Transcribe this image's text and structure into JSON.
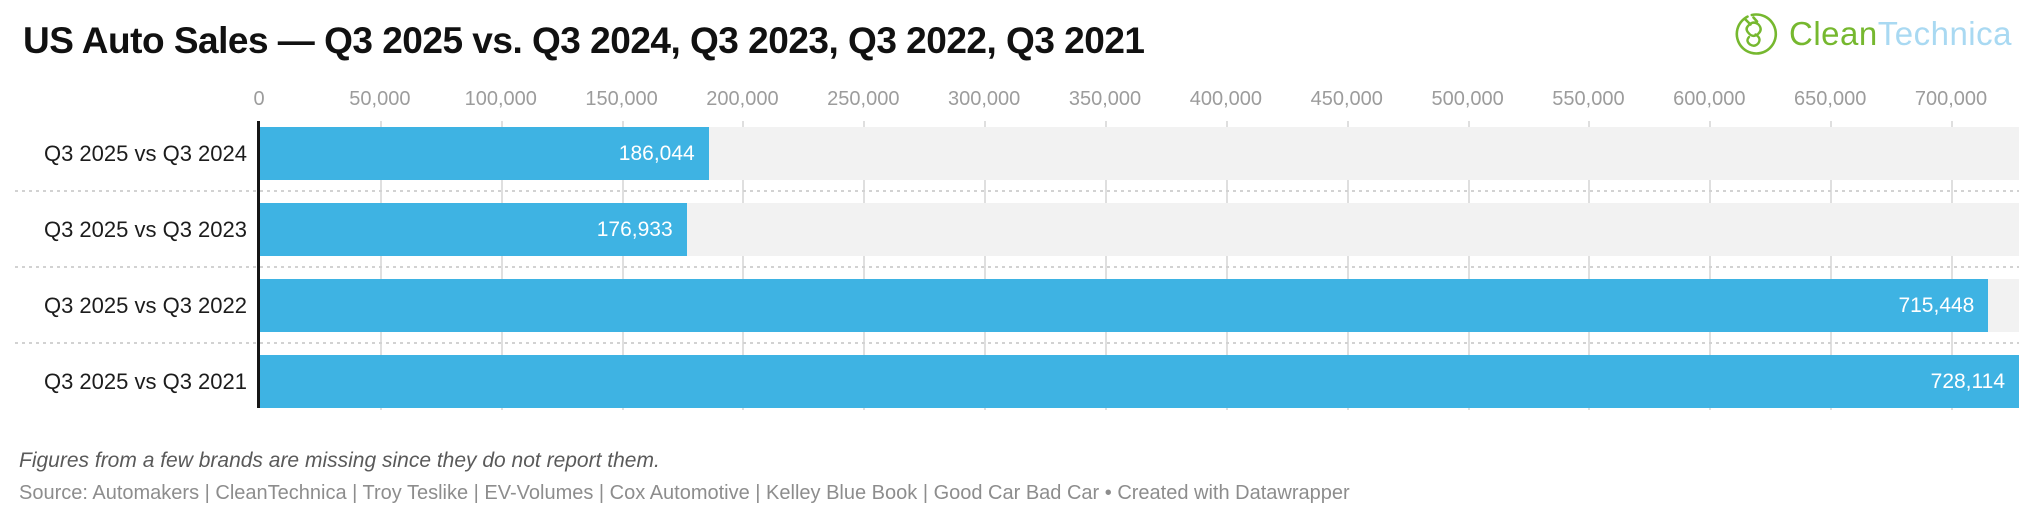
{
  "header": {
    "title": "US Auto Sales — Q3 2025 vs. Q3 2024, Q3 2023, Q3 2022, Q3 2021",
    "logo": {
      "text_primary": "Clean",
      "text_secondary": "Technica",
      "primary_color": "#76b82f",
      "secondary_color": "#a9d9f2",
      "icon": "cleantechnica-plug-icon"
    }
  },
  "chart_data": {
    "type": "bar",
    "orientation": "horizontal",
    "title": "US Auto Sales — Q3 2025 vs. Q3 2024, Q3 2023, Q3 2022, Q3 2021",
    "categories": [
      "Q3 2025 vs Q3 2024",
      "Q3 2025 vs Q3 2023",
      "Q3 2025 vs Q3 2022",
      "Q3 2025 vs Q3 2021"
    ],
    "values": [
      186044,
      176933,
      715448,
      728114
    ],
    "value_labels": [
      "186,044",
      "176,933",
      "715,448",
      "728,114"
    ],
    "xlabel": "",
    "ylabel": "",
    "xlim": [
      0,
      728114
    ],
    "ticks": [
      0,
      50000,
      100000,
      150000,
      200000,
      250000,
      300000,
      350000,
      400000,
      450000,
      500000,
      550000,
      600000,
      650000,
      700000
    ],
    "tick_labels": [
      "0",
      "50,000",
      "100,000",
      "150,000",
      "200,000",
      "250,000",
      "300,000",
      "350,000",
      "400,000",
      "450,000",
      "500,000",
      "550,000",
      "600,000",
      "650,000",
      "700,000"
    ],
    "grid": true,
    "legend": "none",
    "bar_color": "#3eb3e3",
    "row_bg_color": "#f2f2f2",
    "gridline_color": "#dfdfdf",
    "axis_line_color": "#161616"
  },
  "footer": {
    "note": "Figures from a few brands are missing since they do not report them.",
    "source": "Source: Automakers | CleanTechnica | Troy Teslike | EV-Volumes | Cox Automotive | Kelley Blue Book | Good Car Bad Car • Created with Datawrapper"
  }
}
